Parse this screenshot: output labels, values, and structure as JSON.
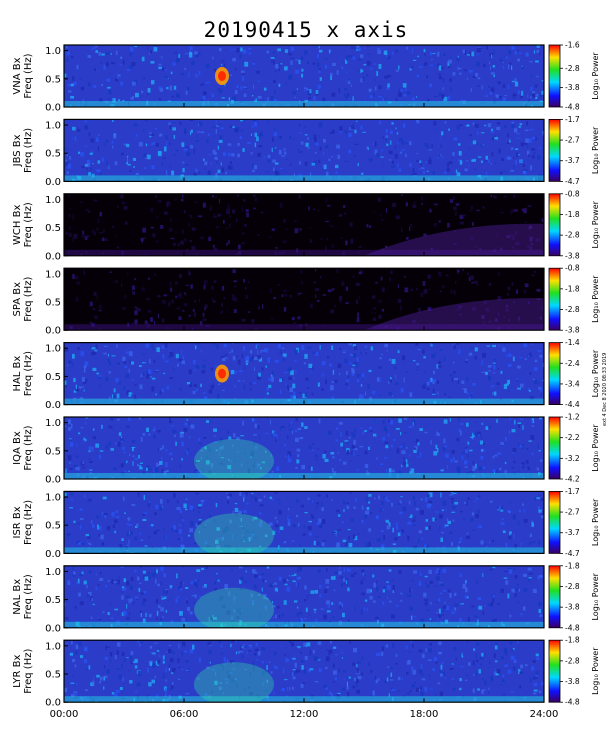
{
  "title": "20190415 x axis",
  "side_note": "ext 4 Dec 8 2020 08:33 2019",
  "colorbar_label": "Log₁₀ Power",
  "colors": {
    "background": "#ffffff",
    "frame": "#000000",
    "dark_station": "#000000"
  },
  "chart_data": {
    "type": "heatmap",
    "title": "20190415 x axis",
    "xlim": [
      0,
      24
    ],
    "x_ticks": [
      "00:00",
      "06:00",
      "12:00",
      "18:00",
      "24:00"
    ],
    "x_tick_values": [
      0,
      6,
      12,
      18,
      24
    ],
    "ylim": [
      0,
      1.1
    ],
    "y_ticks": [
      "0.0",
      "0.5",
      "1.0"
    ],
    "y_tick_values": [
      0.0,
      0.5,
      1.0
    ],
    "colormap": "rainbow (purple → blue → cyan → green → yellow → red)",
    "panels": [
      {
        "station": "VNA",
        "ylabel": "VNA Bx\nFreq (Hz)",
        "clim": [
          -4.8,
          -1.6
        ],
        "cb_ticks": [
          "-1.6",
          "-2.8",
          "-3.8",
          "-4.8"
        ],
        "background": "blue"
      },
      {
        "station": "JBS",
        "ylabel": "JBS Bx\nFreq (Hz)",
        "clim": [
          -4.7,
          -1.7
        ],
        "cb_ticks": [
          "-1.7",
          "-2.7",
          "-3.7",
          "-4.7"
        ],
        "background": "blue"
      },
      {
        "station": "WCH",
        "ylabel": "WCH Bx\nFreq (Hz)",
        "clim": [
          -3.8,
          -0.8
        ],
        "cb_ticks": [
          "-0.8",
          "-1.8",
          "-2.8",
          "-3.8"
        ],
        "background": "black"
      },
      {
        "station": "SPA",
        "ylabel": "SPA Bx\nFreq (Hz)",
        "clim": [
          -3.8,
          -0.8
        ],
        "cb_ticks": [
          "-0.8",
          "-1.8",
          "-2.8",
          "-3.8"
        ],
        "background": "black"
      },
      {
        "station": "HAL",
        "ylabel": "HAL Bx\nFreq (Hz)",
        "clim": [
          -4.4,
          -1.4
        ],
        "cb_ticks": [
          "-1.4",
          "-2.4",
          "-3.4",
          "-4.4"
        ],
        "background": "blue"
      },
      {
        "station": "IQA",
        "ylabel": "IQA Bx\nFreq (Hz)",
        "clim": [
          -4.2,
          -1.2
        ],
        "cb_ticks": [
          "-1.2",
          "-2.2",
          "-3.2",
          "-4.2"
        ],
        "background": "blue"
      },
      {
        "station": "ISR",
        "ylabel": "ISR Bx\nFreq (Hz)",
        "clim": [
          -4.7,
          -1.7
        ],
        "cb_ticks": [
          "-1.7",
          "-2.7",
          "-3.7",
          "-4.7"
        ],
        "background": "blue"
      },
      {
        "station": "NAL",
        "ylabel": "NAL Bx\nFreq (Hz)",
        "clim": [
          -4.8,
          -1.8
        ],
        "cb_ticks": [
          "-1.8",
          "-2.8",
          "-3.8",
          "-4.8"
        ],
        "background": "blue"
      },
      {
        "station": "LYR",
        "ylabel": "LYR Bx\nFreq (Hz)",
        "clim": [
          -4.8,
          -1.8
        ],
        "cb_ticks": [
          "-1.8",
          "-2.8",
          "-3.8",
          "-4.8"
        ],
        "background": "blue"
      }
    ]
  }
}
